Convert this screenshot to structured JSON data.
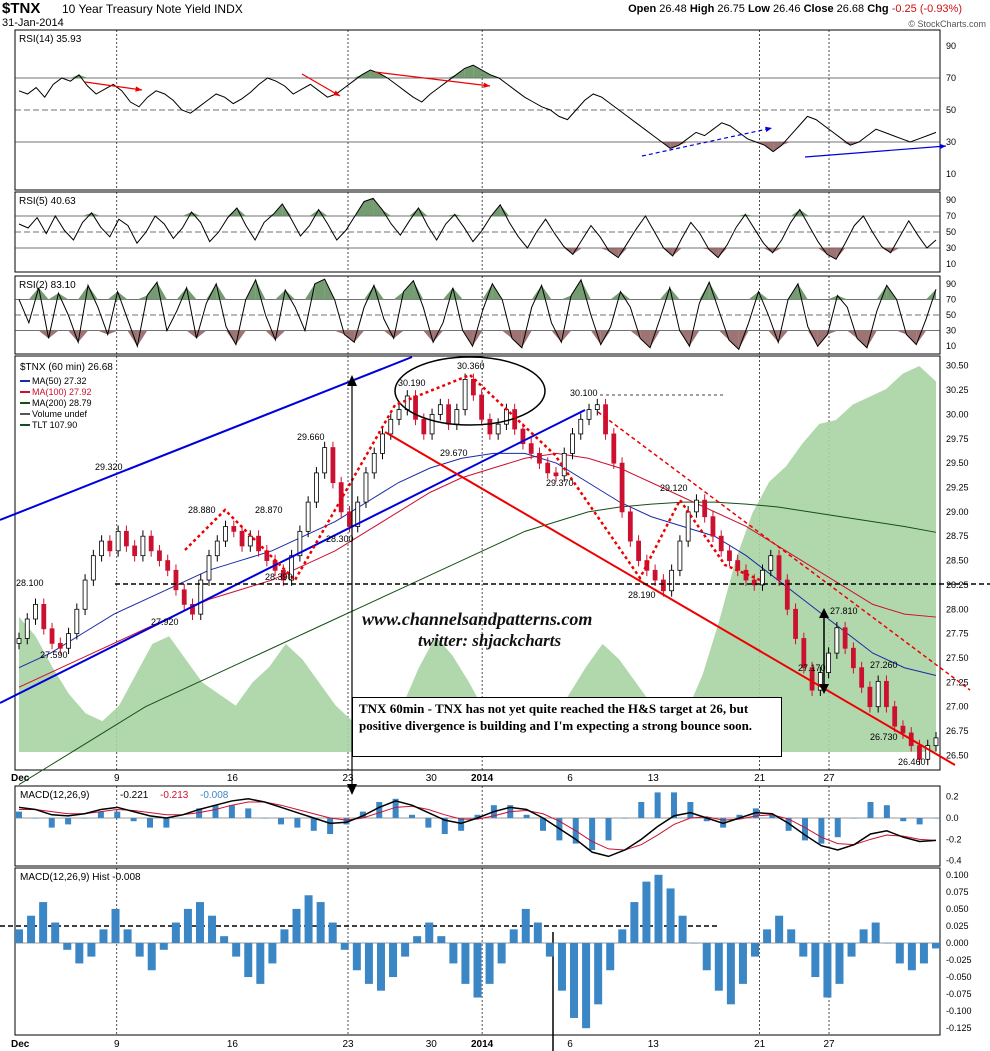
{
  "header": {
    "symbol": "$TNX",
    "description": "10 Year Treasury Note Yield INDX",
    "date": "31-Jan-2014",
    "open_label": "Open",
    "open": "26.48",
    "high_label": "High",
    "high": "26.75",
    "low_label": "Low",
    "low": "26.46",
    "close_label": "Close",
    "close": "26.68",
    "chg_label": "Chg",
    "chg": "-0.25 (-0.93%)",
    "brand": "© StockCharts.com"
  },
  "watermark": {
    "site": "www.channelsandpatterns.com",
    "twitter": "twitter: shjackcharts"
  },
  "note": "TNX 60min - TNX has not yet quite reached the H&S target at 26, but positive divergence is building and I'm expecting a strong bounce soon.",
  "colors": {
    "price_up": "#000000",
    "price_down": "#cc1030",
    "ma50": "#1a2aa8",
    "ma100": "#cc1030",
    "ma200": "#145014",
    "tlt_fill": "#a9d4a3",
    "rsi_pos": "#5c8a58",
    "rsi_neg": "#8c5a5a",
    "macd_hist": "#3b86c4",
    "channel_blue": "#0000dd",
    "channel_red": "#ee0000"
  },
  "chart_data": [
    {
      "type": "line",
      "panel": "RSI(14)",
      "label": "RSI(14) 35.93",
      "y_ticks": [
        10,
        30,
        50,
        70,
        90
      ],
      "ylim": [
        0,
        100
      ],
      "levels": [
        30,
        50,
        70
      ],
      "values": [
        62,
        60,
        64,
        58,
        66,
        70,
        68,
        72,
        65,
        60,
        63,
        66,
        62,
        55,
        52,
        58,
        62,
        60,
        56,
        50,
        48,
        52,
        56,
        60,
        58,
        54,
        57,
        61,
        66,
        70,
        68,
        65,
        60,
        63,
        66,
        62,
        58,
        60,
        64,
        68,
        72,
        75,
        73,
        70,
        66,
        62,
        58,
        55,
        60,
        64,
        68,
        72,
        76,
        78,
        75,
        72,
        70,
        66,
        62,
        58,
        55,
        52,
        50,
        46,
        44,
        50,
        56,
        60,
        58,
        54,
        50,
        46,
        42,
        38,
        34,
        30,
        26,
        28,
        32,
        36,
        34,
        38,
        42,
        40,
        36,
        32,
        30,
        28,
        24,
        28,
        34,
        40,
        46,
        44,
        40,
        36,
        32,
        28,
        30,
        34,
        38,
        36,
        34,
        32,
        30,
        32,
        34,
        36
      ]
    },
    {
      "type": "line",
      "panel": "RSI(5)",
      "label": "RSI(5) 40.63",
      "y_ticks": [
        10,
        30,
        50,
        70,
        90
      ],
      "ylim": [
        0,
        100
      ],
      "levels": [
        30,
        50,
        70
      ],
      "values": [
        60,
        55,
        68,
        48,
        70,
        52,
        40,
        62,
        74,
        56,
        44,
        66,
        58,
        36,
        50,
        70,
        60,
        42,
        55,
        75,
        62,
        38,
        50,
        68,
        80,
        58,
        40,
        62,
        72,
        85,
        66,
        45,
        58,
        78,
        60,
        40,
        52,
        70,
        88,
        92,
        78,
        60,
        46,
        64,
        80,
        58,
        40,
        60,
        72,
        56,
        38,
        52,
        70,
        84,
        62,
        44,
        30,
        50,
        66,
        48,
        32,
        22,
        40,
        58,
        44,
        26,
        18,
        36,
        54,
        70,
        50,
        30,
        20,
        42,
        62,
        48,
        28,
        18,
        34,
        56,
        72,
        54,
        36,
        24,
        40,
        62,
        78,
        58,
        38,
        22,
        16,
        36,
        58,
        70,
        50,
        32,
        24,
        44,
        64,
        46,
        30,
        40
      ]
    },
    {
      "type": "line",
      "panel": "RSI(2)",
      "label": "RSI(2) 83.10",
      "y_ticks": [
        10,
        30,
        50,
        70,
        90
      ],
      "ylim": [
        0,
        100
      ],
      "levels": [
        30,
        50,
        70
      ],
      "values": [
        70,
        40,
        85,
        20,
        78,
        50,
        15,
        88,
        60,
        25,
        80,
        45,
        10,
        75,
        92,
        30,
        55,
        85,
        20,
        65,
        90,
        35,
        12,
        70,
        95,
        50,
        18,
        82,
        60,
        30,
        90,
        96,
        70,
        25,
        15,
        60,
        88,
        45,
        20,
        80,
        94,
        60,
        15,
        40,
        85,
        30,
        10,
        55,
        90,
        70,
        20,
        8,
        60,
        88,
        40,
        15,
        75,
        95,
        50,
        12,
        35,
        80,
        60,
        20,
        8,
        45,
        85,
        30,
        10,
        65,
        92,
        55,
        18,
        6,
        40,
        80,
        50,
        15,
        70,
        90,
        35,
        10,
        25,
        75,
        60,
        20,
        8,
        55,
        88,
        70,
        25,
        12,
        45,
        83
      ]
    },
    {
      "type": "candlestick",
      "panel": "$TNX (60 min)",
      "label": "$TNX (60 min) 26.68",
      "y_ticks": [
        26.5,
        26.75,
        27.0,
        27.25,
        27.5,
        27.75,
        28.0,
        28.25,
        28.5,
        28.75,
        29.0,
        29.25,
        29.5,
        29.75,
        30.0,
        30.25,
        30.5
      ],
      "ylim": [
        26.35,
        30.6
      ],
      "x_ticks": [
        "Dec",
        "9",
        "16",
        "23",
        "30",
        "2014",
        "6",
        "13",
        "21",
        "27"
      ],
      "legend": [
        "MA(50) 27.32",
        "MA(100) 27.92",
        "MA(200) 28.79",
        "Volume undef",
        "TLT 107.90"
      ],
      "close": [
        27.7,
        27.9,
        28.05,
        27.8,
        27.65,
        27.6,
        27.75,
        28.0,
        28.3,
        28.55,
        28.7,
        28.6,
        28.8,
        28.65,
        28.55,
        28.75,
        28.6,
        28.5,
        28.4,
        28.2,
        28.05,
        27.95,
        28.3,
        28.55,
        28.7,
        28.85,
        28.8,
        28.65,
        28.75,
        28.6,
        28.5,
        28.4,
        28.3,
        28.55,
        28.8,
        29.1,
        29.4,
        29.66,
        29.3,
        29.0,
        28.85,
        29.1,
        29.4,
        29.6,
        29.8,
        29.95,
        30.05,
        30.19,
        29.95,
        29.8,
        30.0,
        30.1,
        29.9,
        30.05,
        30.36,
        30.2,
        29.95,
        29.8,
        29.9,
        30.05,
        29.85,
        29.7,
        29.6,
        29.5,
        29.4,
        29.37,
        29.6,
        29.8,
        29.95,
        30.05,
        30.1,
        29.8,
        29.5,
        29.0,
        28.7,
        28.5,
        28.4,
        28.3,
        28.19,
        28.4,
        28.7,
        29.0,
        29.12,
        28.95,
        28.75,
        28.6,
        28.5,
        28.4,
        28.3,
        28.25,
        28.4,
        28.55,
        28.3,
        28.0,
        27.7,
        27.4,
        27.17,
        27.35,
        27.55,
        27.81,
        27.6,
        27.4,
        27.2,
        27.0,
        27.26,
        27.0,
        26.8,
        26.73,
        26.6,
        26.46,
        26.6,
        26.68
      ],
      "ma50": [
        27.4,
        27.55,
        27.75,
        27.95,
        28.1,
        28.25,
        28.4,
        28.5,
        28.6,
        28.75,
        28.9,
        29.1,
        29.3,
        29.45,
        29.55,
        29.6,
        29.6,
        29.5,
        29.3,
        29.1,
        28.95,
        28.85,
        28.75,
        28.55,
        28.3,
        28.05,
        27.8,
        27.55,
        27.4,
        27.32
      ],
      "ma100": [
        27.2,
        27.35,
        27.5,
        27.65,
        27.8,
        27.95,
        28.1,
        28.2,
        28.3,
        28.45,
        28.6,
        28.8,
        29.0,
        29.2,
        29.35,
        29.45,
        29.55,
        29.6,
        29.55,
        29.45,
        29.3,
        29.15,
        29.0,
        28.85,
        28.65,
        28.45,
        28.25,
        28.05,
        27.95,
        27.92
      ],
      "ma200": [
        26.2,
        26.4,
        26.6,
        26.8,
        27.0,
        27.15,
        27.3,
        27.45,
        27.6,
        27.75,
        27.9,
        28.05,
        28.2,
        28.35,
        28.5,
        28.65,
        28.8,
        28.9,
        29.0,
        29.05,
        29.08,
        29.1,
        29.1,
        29.08,
        29.05,
        29.0,
        28.95,
        28.9,
        28.85,
        28.79
      ],
      "tlt_series_label": "TLT 107.90",
      "tlt": [
        0.35,
        0.3,
        0.22,
        0.15,
        0.1,
        0.08,
        0.12,
        0.2,
        0.28,
        0.3,
        0.24,
        0.18,
        0.15,
        0.12,
        0.18,
        0.22,
        0.28,
        0.24,
        0.18,
        0.12,
        0.08,
        0.05,
        0.06,
        0.12,
        0.22,
        0.3,
        0.25,
        0.18,
        0.1,
        0.06,
        0.04,
        0.05,
        0.08,
        0.15,
        0.22,
        0.28,
        0.24,
        0.18,
        0.12,
        0.08,
        0.1,
        0.2,
        0.34,
        0.5,
        0.62,
        0.7,
        0.74,
        0.8,
        0.85,
        0.86,
        0.9,
        0.92,
        0.94,
        0.98,
        1.0,
        0.96
      ],
      "annotations": [
        "29.320",
        "28.880",
        "28.870",
        "29.660",
        "28.300",
        "28.390",
        "28.100",
        "27.920",
        "27.590",
        "30.190",
        "30.360",
        "29.670",
        "29.370",
        "30.100",
        "29.120",
        "28.190",
        "27.810",
        "27.260",
        "27.170",
        "26.730",
        "26.460"
      ]
    },
    {
      "type": "line",
      "panel": "MACD(12,26,9)",
      "label": "MACD(12,26,9)",
      "readout": [
        "-0.221",
        "-0.213",
        "-0.008"
      ],
      "y_ticks": [
        -0.4,
        -0.2,
        0.0,
        0.2
      ],
      "ylim": [
        -0.45,
        0.3
      ],
      "macd": [
        0.1,
        0.08,
        0.03,
        0.02,
        0.04,
        0.08,
        0.1,
        0.06,
        0.02,
        0.0,
        0.03,
        0.08,
        0.12,
        0.16,
        0.18,
        0.15,
        0.1,
        0.05,
        0.0,
        -0.05,
        -0.04,
        0.02,
        0.1,
        0.16,
        0.12,
        0.05,
        -0.02,
        -0.05,
        0.0,
        0.06,
        0.1,
        0.08,
        0.0,
        -0.1,
        -0.2,
        -0.32,
        -0.36,
        -0.3,
        -0.2,
        -0.08,
        0.02,
        0.05,
        0.0,
        -0.05,
        0.0,
        0.05,
        0.04,
        -0.05,
        -0.16,
        -0.26,
        -0.3,
        -0.25,
        -0.15,
        -0.12,
        -0.18,
        -0.22,
        -0.21
      ],
      "signal": [
        0.08,
        0.08,
        0.06,
        0.04,
        0.04,
        0.06,
        0.08,
        0.07,
        0.05,
        0.03,
        0.03,
        0.05,
        0.08,
        0.12,
        0.15,
        0.15,
        0.12,
        0.08,
        0.04,
        0.0,
        -0.02,
        0.0,
        0.05,
        0.1,
        0.11,
        0.08,
        0.03,
        -0.01,
        -0.01,
        0.02,
        0.06,
        0.07,
        0.04,
        -0.03,
        -0.12,
        -0.22,
        -0.29,
        -0.3,
        -0.25,
        -0.16,
        -0.06,
        0.0,
        0.01,
        -0.02,
        -0.01,
        0.02,
        0.03,
        -0.01,
        -0.09,
        -0.18,
        -0.24,
        -0.25,
        -0.2,
        -0.16,
        -0.17,
        -0.2,
        -0.21
      ]
    },
    {
      "type": "bar",
      "panel": "MACD(12,26,9) Hist",
      "label": "MACD(12,26,9) Hist -0.008",
      "y_ticks": [
        -0.125,
        -0.1,
        -0.075,
        -0.05,
        -0.025,
        0.0,
        0.025,
        0.05,
        0.075,
        0.1
      ],
      "ylim": [
        -0.135,
        0.11
      ],
      "values": [
        0.02,
        0.04,
        0.06,
        0.03,
        -0.01,
        -0.03,
        -0.02,
        0.02,
        0.05,
        0.02,
        -0.02,
        -0.04,
        -0.01,
        0.03,
        0.05,
        0.06,
        0.04,
        0.01,
        -0.02,
        -0.05,
        -0.06,
        -0.03,
        0.02,
        0.05,
        0.07,
        0.06,
        0.03,
        -0.01,
        -0.04,
        -0.06,
        -0.07,
        -0.05,
        -0.02,
        0.01,
        0.03,
        0.01,
        -0.03,
        -0.06,
        -0.08,
        -0.06,
        -0.03,
        0.02,
        0.05,
        0.03,
        -0.02,
        -0.07,
        -0.11,
        -0.125,
        -0.09,
        -0.04,
        0.02,
        0.06,
        0.09,
        0.1,
        0.08,
        0.04,
        0.0,
        -0.04,
        -0.07,
        -0.09,
        -0.06,
        -0.02,
        0.02,
        0.04,
        0.02,
        -0.02,
        -0.05,
        -0.08,
        -0.06,
        -0.02,
        0.02,
        0.03,
        0.0,
        -0.03,
        -0.04,
        -0.03,
        -0.008
      ]
    }
  ]
}
